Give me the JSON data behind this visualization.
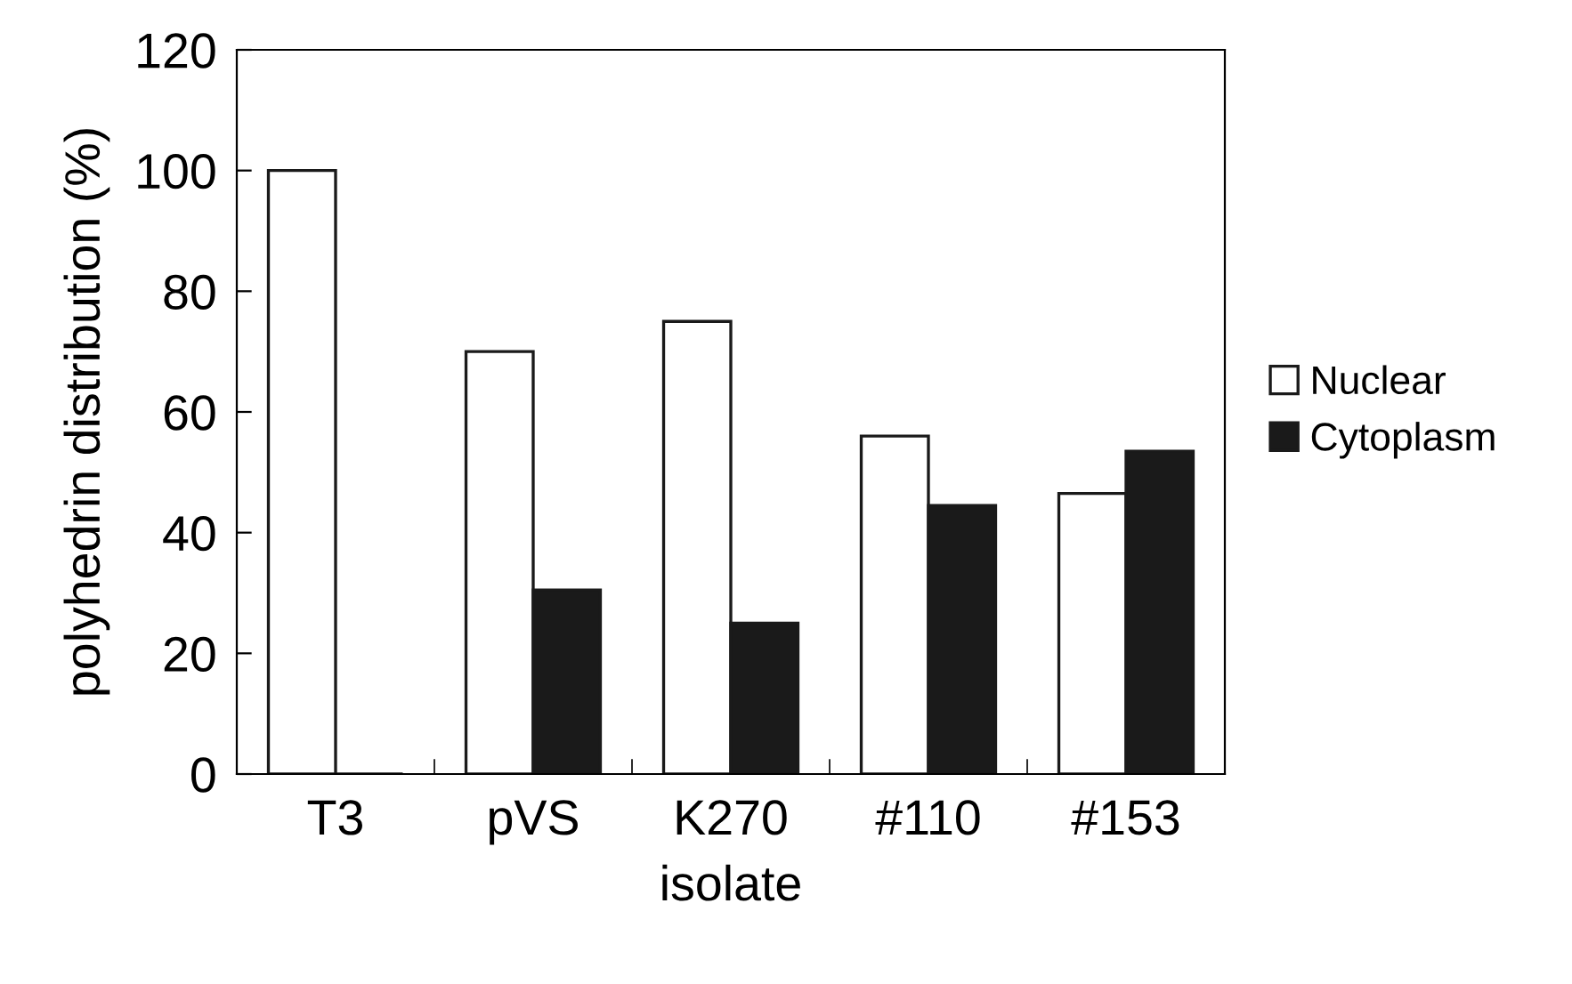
{
  "chart_data": {
    "type": "bar",
    "xlabel": "isolate",
    "ylabel": "polyhedrin distribution (%)",
    "categories": [
      "T3",
      "pVS",
      "K270",
      "#110",
      "#153"
    ],
    "series": [
      {
        "name": "Nuclear",
        "color": "#ffffff",
        "values": [
          100,
          70,
          75,
          56,
          46.5
        ]
      },
      {
        "name": "Cytoplasm",
        "color": "#1a1a1a",
        "values": [
          0,
          30.5,
          25,
          44.5,
          53.5
        ]
      }
    ],
    "ylim": [
      0,
      120
    ],
    "yticks": [
      0,
      20,
      40,
      60,
      80,
      100,
      120
    ],
    "grid": false,
    "legend": "right"
  }
}
